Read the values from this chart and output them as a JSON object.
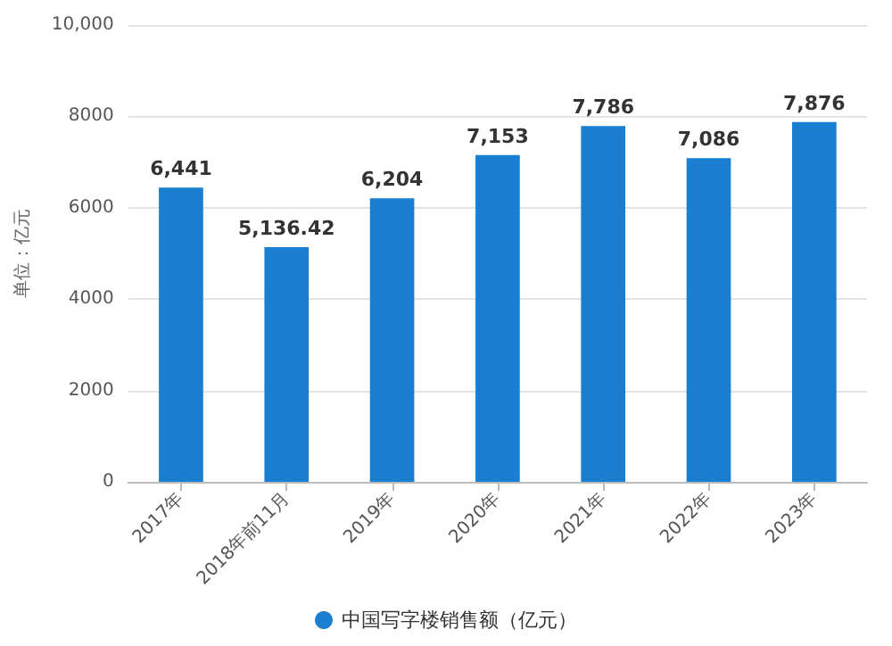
{
  "chart_data": {
    "type": "bar",
    "ylabel": "单位：亿元",
    "categories": [
      "2017年",
      "2018年前11月",
      "2019年",
      "2020年",
      "2021年",
      "2022年",
      "2023年"
    ],
    "series": [
      {
        "name": "中国写字楼销售额（亿元）",
        "color": "#1a7fd0",
        "values": [
          6441,
          5136.42,
          6204,
          7153,
          7786,
          7086,
          7876
        ],
        "value_labels": [
          "6,441",
          "5,136.42",
          "6,204",
          "7,153",
          "7,786",
          "7,086",
          "7,876"
        ]
      }
    ],
    "ylim": [
      0,
      10000
    ],
    "yticks": [
      {
        "value": 0,
        "label": "0"
      },
      {
        "value": 2000,
        "label": "2000"
      },
      {
        "value": 4000,
        "label": "4000"
      },
      {
        "value": 6000,
        "label": "6000"
      },
      {
        "value": 8000,
        "label": "8000"
      },
      {
        "value": 10000,
        "label": "10,000"
      }
    ],
    "grid": "y",
    "legend": "bottom"
  }
}
